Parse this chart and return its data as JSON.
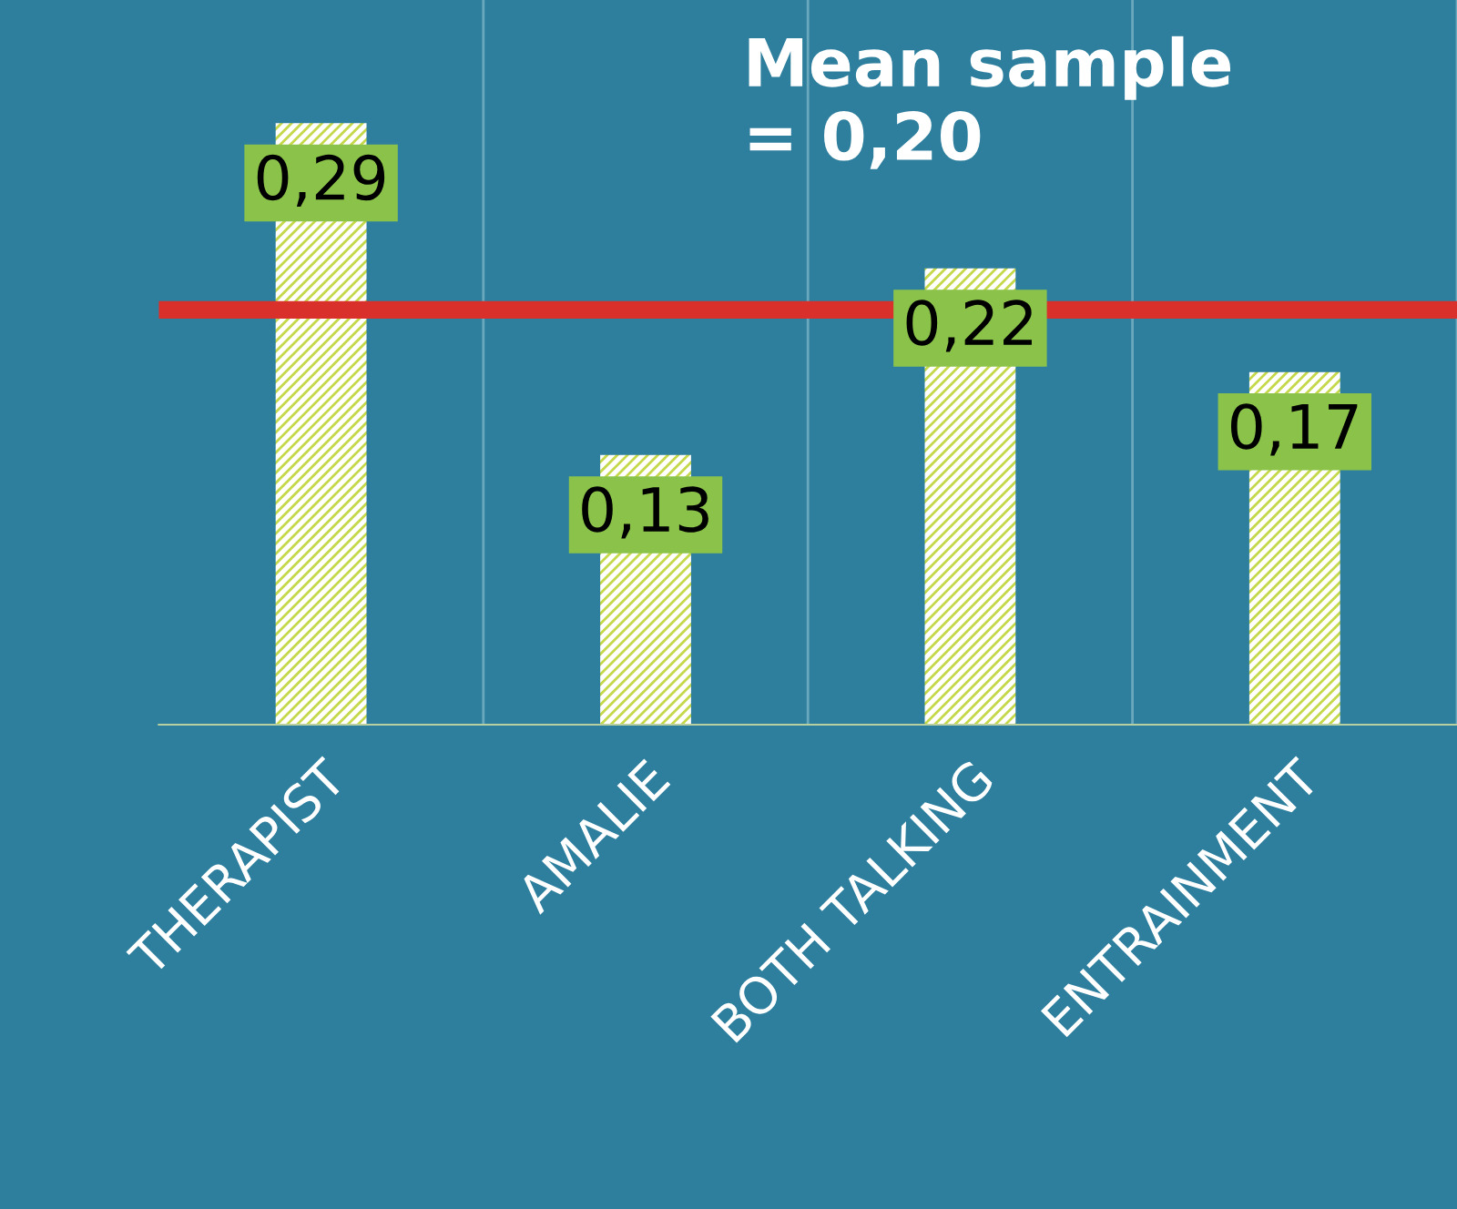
{
  "chart_data": {
    "type": "bar",
    "categories": [
      "THERAPIST",
      "AMALIE",
      "BOTH TALKING",
      "ENTRAINMENT"
    ],
    "values": [
      0.29,
      0.13,
      0.22,
      0.17
    ],
    "color": "#ffffff",
    "value_labels": [
      "0,29",
      "0,13",
      "0,22",
      "0,17"
    ],
    "grid": "x",
    "ref_lines": [
      {
        "axis": "y",
        "value": 0.2,
        "color": "#d9302c",
        "label": "Mean sample\n= 0,20"
      }
    ]
  }
}
